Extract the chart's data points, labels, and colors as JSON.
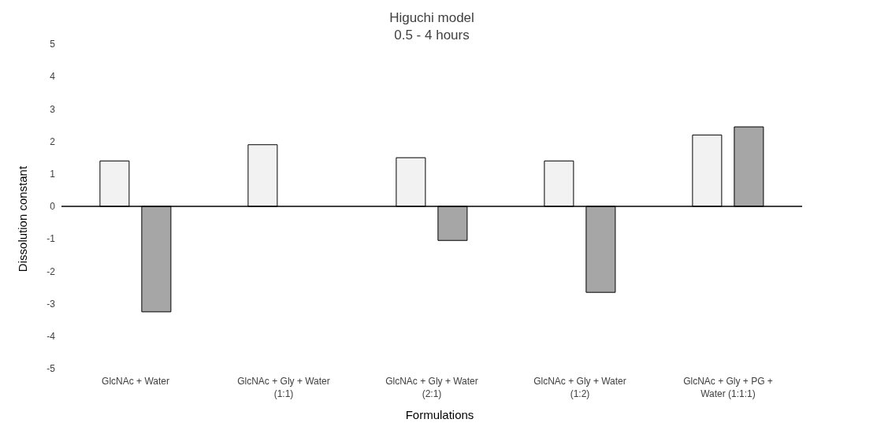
{
  "chart_data": {
    "type": "bar",
    "title": "Higuchi model",
    "subtitle": "0.5 - 4 hours",
    "xlabel": "Formulations",
    "ylabel": "Dissolution constant",
    "categories": [
      "GlcNAc + Water",
      "GlcNAc + Gly + Water (1:1)",
      "GlcNAc + Gly + Water (2:1)",
      "GlcNAc + Gly + Water (1:2)",
      "GlcNAc + Gly + PG + Water (1:1:1)"
    ],
    "series": [
      {
        "color": "#f2f2f2",
        "values": [
          1.4,
          1.9,
          1.5,
          1.4,
          2.2
        ]
      },
      {
        "color": "#a6a6a6",
        "values": [
          -3.25,
          0,
          -1.05,
          -2.65,
          2.45
        ]
      }
    ],
    "ylim": [
      -5,
      5
    ],
    "yticks": [
      -5,
      -4,
      -3,
      -2,
      -1,
      0,
      1,
      2,
      3,
      4,
      5
    ],
    "legend": false
  }
}
